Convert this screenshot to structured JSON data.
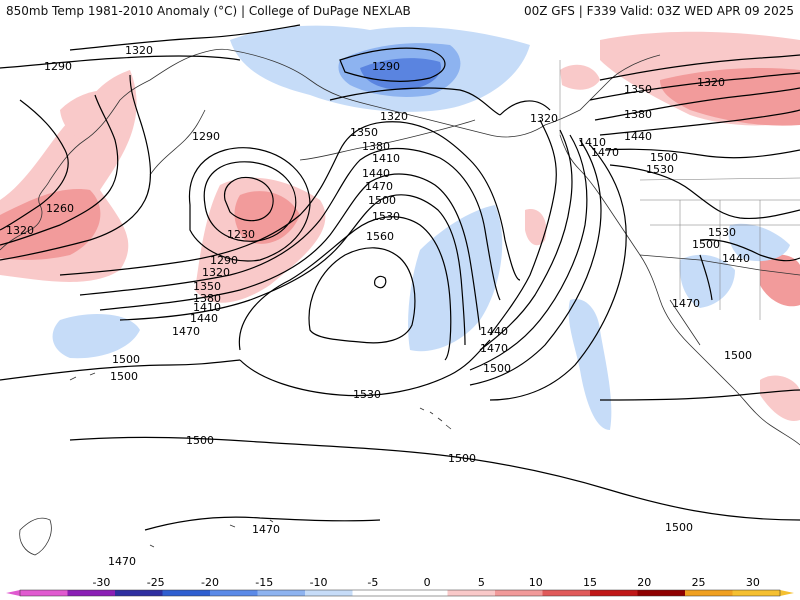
{
  "header": {
    "title": "850mb Temp 1981-2010 Anomaly (°C) | College of DuPage NEXLAB",
    "run_info": "00Z GFS | F339 Valid: 03Z WED APR 09 2025"
  },
  "contour_labels": [
    "1320",
    "1290",
    "1290",
    "1320",
    "1320",
    "1290",
    "1260",
    "1320",
    "1230",
    "1350",
    "1380",
    "1410",
    "1440",
    "1470",
    "1500",
    "1530",
    "1560",
    "1290",
    "1320",
    "1350",
    "1380",
    "1410",
    "1440",
    "1470",
    "1500",
    "1530",
    "1440",
    "1470",
    "1500",
    "1320",
    "1350",
    "1380",
    "1440",
    "1410",
    "1470",
    "1500",
    "1530",
    "1530",
    "1500",
    "1440",
    "1470",
    "1500",
    "1500",
    "1500",
    "1500",
    "1500",
    "1470",
    "1470"
  ],
  "legend": {
    "ticks": [
      "-30",
      "-25",
      "-20",
      "-15",
      "-10",
      "-5",
      "0",
      "5",
      "10",
      "15",
      "20",
      "25",
      "30"
    ],
    "colors": [
      "#e05ad0",
      "#8a1fb5",
      "#2e2fa0",
      "#2f5fd0",
      "#5a8ae8",
      "#8db3f0",
      "#c6dcf8",
      "#ffffff",
      "#ffffff",
      "#f9c9c9",
      "#f19a9a",
      "#e05a5a",
      "#c01818",
      "#8e0000",
      "#f0a020",
      "#f5c030"
    ]
  },
  "anomaly_colors": {
    "warm_light": "#f9c9c9",
    "warm_mid": "#f29b9b",
    "cool_light": "#c6dcf8",
    "cool_mid": "#8db3f0",
    "cool_dark": "#5a84e0"
  }
}
